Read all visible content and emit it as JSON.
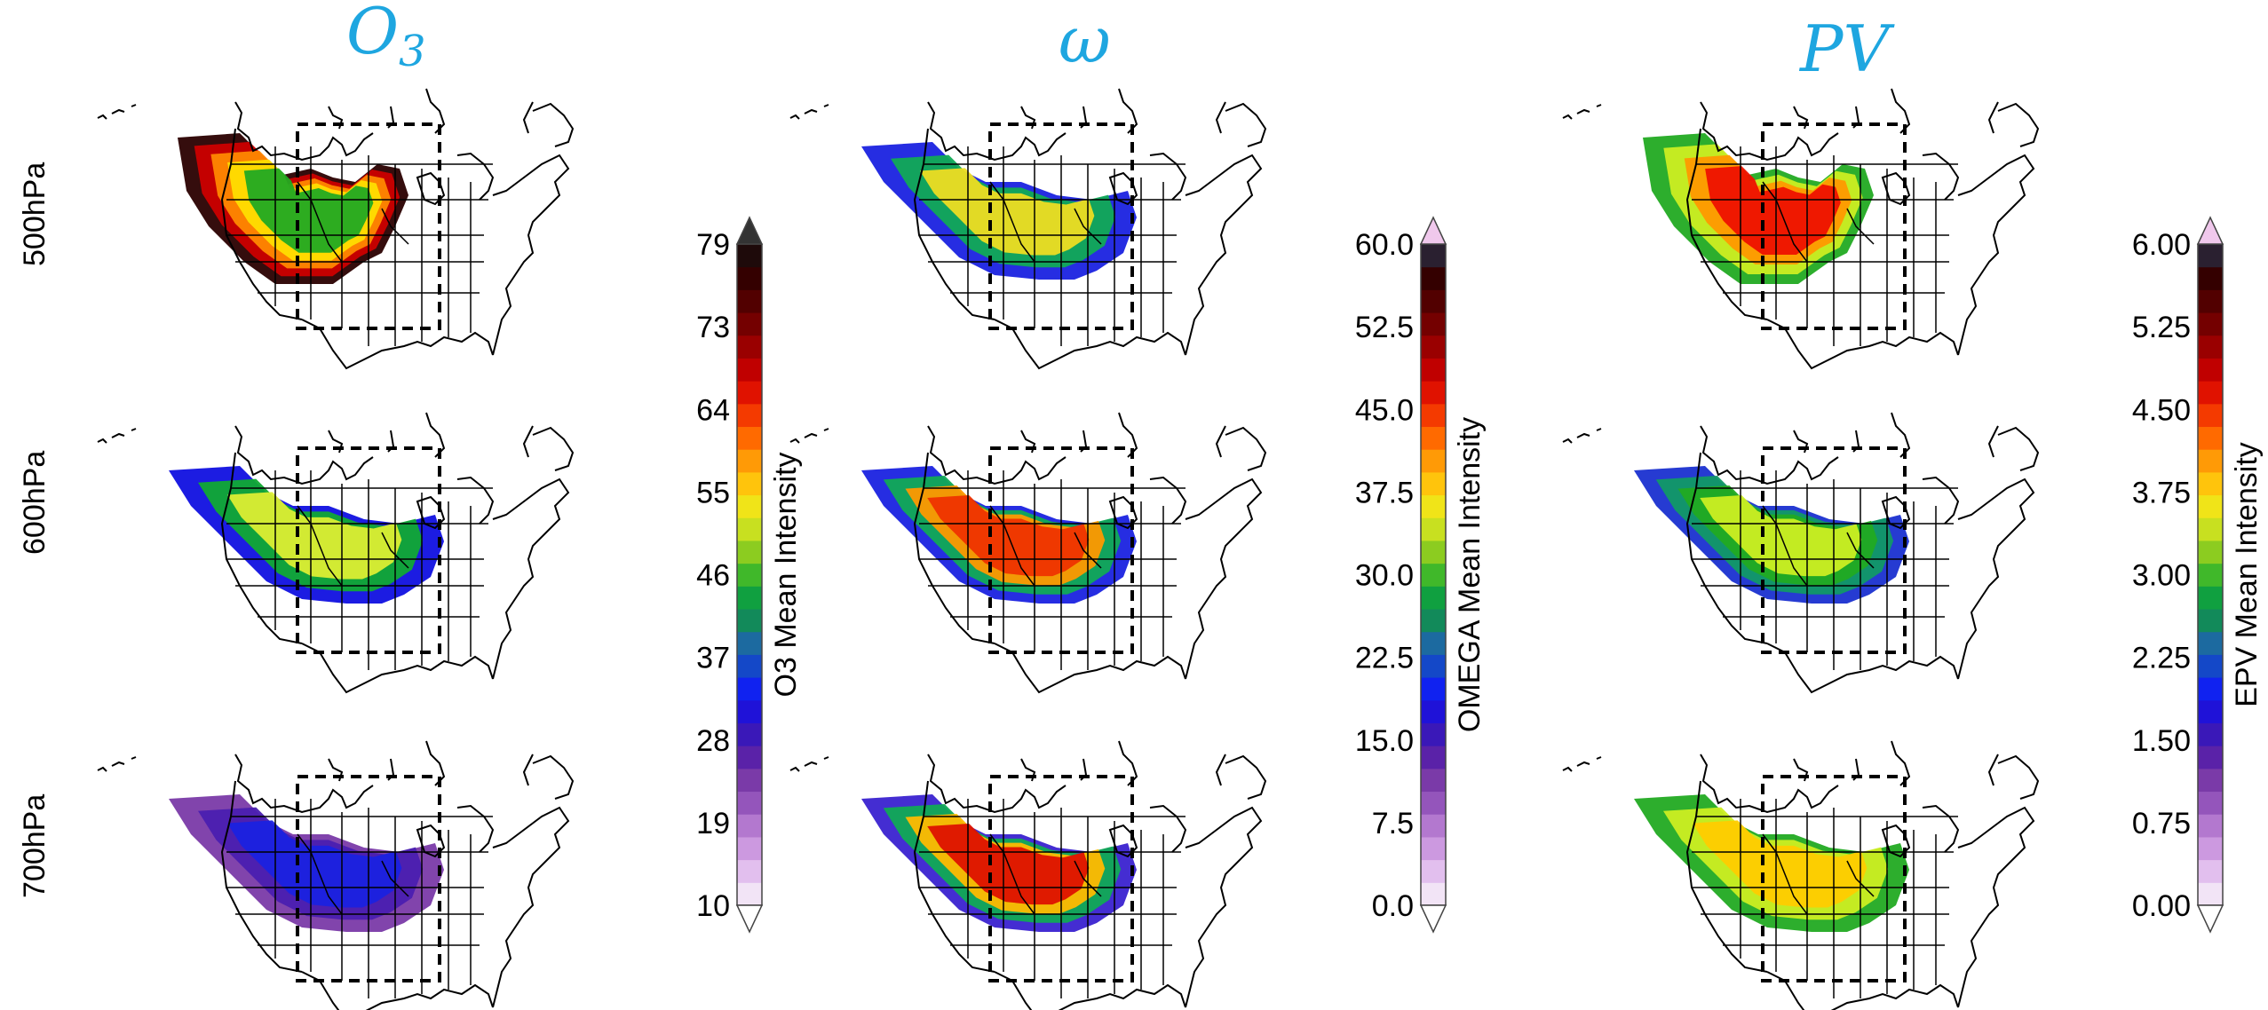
{
  "figure": {
    "row_labels": [
      "500hPa",
      "600hPa",
      "700hPa"
    ]
  },
  "chart_data": [
    {
      "type": "heatmap",
      "variable": "O3",
      "title": "O3",
      "title_base": "O",
      "title_sub": "3",
      "colorbar": {
        "label": "O3 Mean Intensity",
        "ticks": [
          "79",
          "73",
          "64",
          "55",
          "46",
          "37",
          "28",
          "19",
          "10"
        ],
        "range": [
          10,
          79
        ],
        "extend": "both"
      },
      "panels": [
        {
          "level": "500hPa",
          "peak_value": 79,
          "description_colors": [
            "#2a0000",
            "#cc0000",
            "#ff8800",
            "#ffdd00",
            "#22aa22"
          ]
        },
        {
          "level": "600hPa",
          "peak_value": 51,
          "description_colors": [
            "#1010e0",
            "#11aa33",
            "#ddee33"
          ]
        },
        {
          "level": "700hPa",
          "peak_value": 33,
          "description_colors": [
            "#7a3aa8",
            "#4a1fb0",
            "#1a22e0"
          ]
        }
      ]
    },
    {
      "type": "heatmap",
      "variable": "OMEGA",
      "title": "ω",
      "title_base": "ω",
      "title_sub": "",
      "colorbar": {
        "label": "OMEGA Mean Intensity",
        "ticks": [
          "60.0",
          "52.5",
          "45.0",
          "37.5",
          "30.0",
          "22.5",
          "15.0",
          "7.5",
          "0.0"
        ],
        "range": [
          0.0,
          60.0
        ],
        "extend": "both"
      },
      "panels": [
        {
          "level": "500hPa",
          "peak_value": 36,
          "description_colors": [
            "#1a22e0",
            "#11aa55",
            "#eedd22"
          ]
        },
        {
          "level": "600hPa",
          "peak_value": 43,
          "description_colors": [
            "#1a22e0",
            "#11aa55",
            "#ff9900",
            "#ee3300"
          ]
        },
        {
          "level": "700hPa",
          "peak_value": 47,
          "description_colors": [
            "#3a22d0",
            "#11aa55",
            "#ffbb00",
            "#dd1100"
          ]
        }
      ]
    },
    {
      "type": "heatmap",
      "variable": "EPV",
      "title": "PV",
      "title_base": "PV",
      "title_sub": "",
      "colorbar": {
        "label": "EPV Mean Intensity",
        "ticks": [
          "6.00",
          "5.25",
          "4.50",
          "3.75",
          "3.00",
          "2.25",
          "1.50",
          "0.75",
          "0.00"
        ],
        "range": [
          0.0,
          6.0
        ],
        "extend": "both"
      },
      "panels": [
        {
          "level": "500hPa",
          "peak_value": 4.6,
          "description_colors": [
            "#22aa22",
            "#ccee22",
            "#ff9900",
            "#ee1100"
          ]
        },
        {
          "level": "600hPa",
          "peak_value": 3.3,
          "description_colors": [
            "#1a30d0",
            "#119966",
            "#22aa22",
            "#ccee22"
          ]
        },
        {
          "level": "700hPa",
          "peak_value": 3.6,
          "description_colors": [
            "#22aa22",
            "#ccee22",
            "#ffcc00"
          ]
        }
      ]
    }
  ],
  "colormaps": {
    "O3": [
      "#f2e4f6",
      "#e2bfee",
      "#cc99e0",
      "#b378cf",
      "#9455bb",
      "#7a3aa8",
      "#5a22a8",
      "#3a18b8",
      "#1f12d8",
      "#1022f0",
      "#1448c8",
      "#1c6aa0",
      "#128a5a",
      "#10a040",
      "#40b82a",
      "#8ccc20",
      "#c8e020",
      "#f0e418",
      "#ffc40c",
      "#ff9a06",
      "#ff6a00",
      "#f43a00",
      "#e01200",
      "#c00000",
      "#9a0000",
      "#740000",
      "#520000",
      "#340000",
      "#1e0a0a"
    ],
    "OMEGA": [
      "#f2e4f6",
      "#e2bfee",
      "#cc99e0",
      "#b378cf",
      "#9455bb",
      "#7a3aa8",
      "#5a22a8",
      "#3a18b8",
      "#1f12d8",
      "#1022f0",
      "#1448c8",
      "#1c6aa0",
      "#128a5a",
      "#10a040",
      "#40b82a",
      "#8ccc20",
      "#c8e020",
      "#f0e418",
      "#ffc40c",
      "#ff9a06",
      "#ff6a00",
      "#f43a00",
      "#e01200",
      "#c00000",
      "#9a0000",
      "#740000",
      "#520000",
      "#340000",
      "#2a2030"
    ],
    "EPV": [
      "#f2e4f6",
      "#e2bfee",
      "#cc99e0",
      "#b378cf",
      "#9455bb",
      "#7a3aa8",
      "#5a22a8",
      "#3a18b8",
      "#1f12d8",
      "#1022f0",
      "#1448c8",
      "#1c6aa0",
      "#128a5a",
      "#10a040",
      "#40b82a",
      "#8ccc20",
      "#c8e020",
      "#f0e418",
      "#ffc40c",
      "#ff9a06",
      "#ff6a00",
      "#f43a00",
      "#e01200",
      "#c00000",
      "#9a0000",
      "#740000",
      "#520000",
      "#340000",
      "#2a2030"
    ],
    "extend_low": "#ffffff",
    "extend_high_O3": "#333333",
    "extend_high_other": "#f0c8ec"
  }
}
